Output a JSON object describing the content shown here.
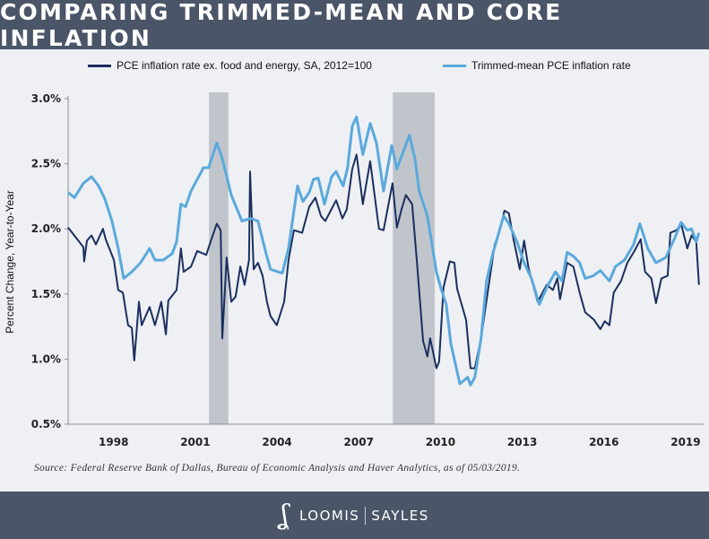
{
  "header": {
    "title": "COMPARING TRIMMED-MEAN AND CORE INFLATION"
  },
  "footer": {
    "source": "Source: Federal Reserve Bank of Dallas, Bureau of Economic Analysis and Haver Analytics, as of 05/03/2019.",
    "brand_left": "LOOMIS",
    "brand_right": "SAYLES",
    "logo_text": "LS"
  },
  "chart_data": {
    "type": "line",
    "title": "COMPARING TRIMMED-MEAN AND CORE INFLATION",
    "xlabel": "",
    "ylabel": "Percent Change, Year-to-Year",
    "xlim": [
      1996.0,
      2019.33
    ],
    "ylim": [
      0.5,
      3.0
    ],
    "x_ticks": [
      1998,
      2001,
      2004,
      2007,
      2010,
      2013,
      2016,
      2019
    ],
    "x_tick_labels": [
      "1998",
      "2001",
      "2004",
      "2007",
      "2010",
      "2013",
      "2016",
      "2019"
    ],
    "y_ticks": [
      0.5,
      1.0,
      1.5,
      2.0,
      2.5,
      3.0
    ],
    "y_tick_labels": [
      "0.5%",
      "1.0%",
      "1.5%",
      "2.0%",
      "2.5%",
      "3.0%"
    ],
    "grid": false,
    "legend_position": "top",
    "recessions": [
      [
        2001.17,
        2001.88
      ],
      [
        2007.92,
        2009.46
      ]
    ],
    "recession_color": "#c0c5cc",
    "series": [
      {
        "name": "PCE inflation rate ex. food and energy, SA, 2012=100",
        "color": "#1b2f5e",
        "points": [
          [
            1996.0,
            2.01
          ],
          [
            1996.56,
            1.86
          ],
          [
            1996.59,
            1.75
          ],
          [
            1996.69,
            1.91
          ],
          [
            1996.86,
            1.95
          ],
          [
            1997.02,
            1.88
          ],
          [
            1997.28,
            2.0
          ],
          [
            1997.38,
            1.92
          ],
          [
            1997.68,
            1.76
          ],
          [
            1997.84,
            1.53
          ],
          [
            1998.01,
            1.51
          ],
          [
            1998.2,
            1.26
          ],
          [
            1998.34,
            1.24
          ],
          [
            1998.43,
            0.99
          ],
          [
            1998.6,
            1.44
          ],
          [
            1998.7,
            1.26
          ],
          [
            1998.99,
            1.4
          ],
          [
            1999.19,
            1.26
          ],
          [
            1999.42,
            1.44
          ],
          [
            1999.59,
            1.19
          ],
          [
            1999.68,
            1.45
          ],
          [
            1999.98,
            1.53
          ],
          [
            2000.14,
            1.85
          ],
          [
            2000.24,
            1.67
          ],
          [
            2000.51,
            1.71
          ],
          [
            2000.74,
            1.83
          ],
          [
            2001.07,
            1.8
          ],
          [
            2001.23,
            1.9
          ],
          [
            2001.46,
            2.04
          ],
          [
            2001.6,
            1.99
          ],
          [
            2001.66,
            1.16
          ],
          [
            2001.82,
            1.78
          ],
          [
            2001.99,
            1.44
          ],
          [
            2002.15,
            1.48
          ],
          [
            2002.32,
            1.71
          ],
          [
            2002.48,
            1.57
          ],
          [
            2002.64,
            1.76
          ],
          [
            2002.68,
            2.44
          ],
          [
            2002.81,
            1.69
          ],
          [
            2002.97,
            1.74
          ],
          [
            2003.14,
            1.64
          ],
          [
            2003.3,
            1.44
          ],
          [
            2003.43,
            1.33
          ],
          [
            2003.66,
            1.26
          ],
          [
            2003.93,
            1.44
          ],
          [
            2004.09,
            1.76
          ],
          [
            2004.29,
            1.99
          ],
          [
            2004.59,
            1.97
          ],
          [
            2004.85,
            2.17
          ],
          [
            2005.08,
            2.24
          ],
          [
            2005.28,
            2.1
          ],
          [
            2005.44,
            2.06
          ],
          [
            2005.84,
            2.22
          ],
          [
            2006.07,
            2.08
          ],
          [
            2006.23,
            2.15
          ],
          [
            2006.43,
            2.46
          ],
          [
            2006.59,
            2.57
          ],
          [
            2006.82,
            2.19
          ],
          [
            2007.09,
            2.52
          ],
          [
            2007.41,
            2.0
          ],
          [
            2007.58,
            1.99
          ],
          [
            2007.91,
            2.35
          ],
          [
            2008.07,
            2.01
          ],
          [
            2008.24,
            2.15
          ],
          [
            2008.4,
            2.26
          ],
          [
            2008.63,
            2.19
          ],
          [
            2008.8,
            1.76
          ],
          [
            2009.03,
            1.14
          ],
          [
            2009.19,
            1.02
          ],
          [
            2009.29,
            1.16
          ],
          [
            2009.52,
            0.93
          ],
          [
            2009.62,
            0.98
          ],
          [
            2009.78,
            1.55
          ],
          [
            2010.01,
            1.75
          ],
          [
            2010.18,
            1.74
          ],
          [
            2010.28,
            1.54
          ],
          [
            2010.61,
            1.3
          ],
          [
            2010.77,
            0.93
          ],
          [
            2010.93,
            0.93
          ],
          [
            2011.16,
            1.16
          ],
          [
            2011.43,
            1.55
          ],
          [
            2011.66,
            1.88
          ],
          [
            2011.82,
            1.97
          ],
          [
            2012.02,
            2.14
          ],
          [
            2012.18,
            2.12
          ],
          [
            2012.35,
            1.92
          ],
          [
            2012.58,
            1.69
          ],
          [
            2012.74,
            1.91
          ],
          [
            2012.91,
            1.69
          ],
          [
            2013.24,
            1.44
          ],
          [
            2013.57,
            1.57
          ],
          [
            2013.8,
            1.53
          ],
          [
            2013.96,
            1.62
          ],
          [
            2014.06,
            1.46
          ],
          [
            2014.32,
            1.74
          ],
          [
            2014.55,
            1.71
          ],
          [
            2014.78,
            1.51
          ],
          [
            2014.98,
            1.36
          ],
          [
            2015.31,
            1.3
          ],
          [
            2015.54,
            1.23
          ],
          [
            2015.7,
            1.29
          ],
          [
            2015.87,
            1.26
          ],
          [
            2016.03,
            1.51
          ],
          [
            2016.3,
            1.6
          ],
          [
            2016.53,
            1.74
          ],
          [
            2016.79,
            1.83
          ],
          [
            2017.02,
            1.92
          ],
          [
            2017.18,
            1.67
          ],
          [
            2017.41,
            1.62
          ],
          [
            2017.58,
            1.43
          ],
          [
            2017.78,
            1.62
          ],
          [
            2018.01,
            1.64
          ],
          [
            2018.11,
            1.97
          ],
          [
            2018.34,
            1.99
          ],
          [
            2018.5,
            2.04
          ],
          [
            2018.73,
            1.85
          ],
          [
            2018.89,
            1.95
          ],
          [
            2019.06,
            1.9
          ],
          [
            2019.16,
            1.57
          ]
        ]
      },
      {
        "name": "Trimmed-mean PCE inflation rate",
        "color": "#5aa9dc",
        "points": [
          [
            1996.0,
            2.28
          ],
          [
            1996.23,
            2.24
          ],
          [
            1996.56,
            2.35
          ],
          [
            1996.86,
            2.4
          ],
          [
            1997.12,
            2.33
          ],
          [
            1997.35,
            2.23
          ],
          [
            1997.61,
            2.06
          ],
          [
            1997.84,
            1.85
          ],
          [
            1998.04,
            1.62
          ],
          [
            1998.34,
            1.67
          ],
          [
            1998.66,
            1.74
          ],
          [
            1998.99,
            1.85
          ],
          [
            1999.19,
            1.76
          ],
          [
            1999.49,
            1.76
          ],
          [
            1999.82,
            1.81
          ],
          [
            1999.98,
            1.9
          ],
          [
            2000.14,
            2.19
          ],
          [
            2000.31,
            2.17
          ],
          [
            2000.51,
            2.29
          ],
          [
            2000.97,
            2.47
          ],
          [
            2001.16,
            2.47
          ],
          [
            2001.46,
            2.66
          ],
          [
            2001.66,
            2.54
          ],
          [
            2001.99,
            2.26
          ],
          [
            2002.38,
            2.06
          ],
          [
            2002.71,
            2.08
          ],
          [
            2002.97,
            2.06
          ],
          [
            2003.27,
            1.81
          ],
          [
            2003.43,
            1.69
          ],
          [
            2003.7,
            1.67
          ],
          [
            2003.86,
            1.66
          ],
          [
            2004.09,
            1.85
          ],
          [
            2004.42,
            2.33
          ],
          [
            2004.62,
            2.21
          ],
          [
            2004.85,
            2.28
          ],
          [
            2005.01,
            2.38
          ],
          [
            2005.18,
            2.39
          ],
          [
            2005.41,
            2.19
          ],
          [
            2005.67,
            2.4
          ],
          [
            2005.84,
            2.44
          ],
          [
            2006.1,
            2.33
          ],
          [
            2006.26,
            2.47
          ],
          [
            2006.43,
            2.79
          ],
          [
            2006.59,
            2.86
          ],
          [
            2006.82,
            2.57
          ],
          [
            2007.09,
            2.81
          ],
          [
            2007.32,
            2.66
          ],
          [
            2007.58,
            2.29
          ],
          [
            2007.88,
            2.64
          ],
          [
            2008.07,
            2.46
          ],
          [
            2008.53,
            2.72
          ],
          [
            2008.73,
            2.54
          ],
          [
            2008.89,
            2.29
          ],
          [
            2009.19,
            2.1
          ],
          [
            2009.52,
            1.67
          ],
          [
            2009.68,
            1.55
          ],
          [
            2009.88,
            1.42
          ],
          [
            2010.05,
            1.12
          ],
          [
            2010.38,
            0.81
          ],
          [
            2010.67,
            0.86
          ],
          [
            2010.77,
            0.8
          ],
          [
            2010.93,
            0.86
          ],
          [
            2011.16,
            1.16
          ],
          [
            2011.36,
            1.6
          ],
          [
            2011.59,
            1.81
          ],
          [
            2011.99,
            2.1
          ],
          [
            2012.18,
            2.04
          ],
          [
            2012.48,
            1.9
          ],
          [
            2012.74,
            1.74
          ],
          [
            2013.01,
            1.62
          ],
          [
            2013.3,
            1.42
          ],
          [
            2013.57,
            1.55
          ],
          [
            2013.89,
            1.67
          ],
          [
            2014.13,
            1.6
          ],
          [
            2014.32,
            1.82
          ],
          [
            2014.55,
            1.79
          ],
          [
            2014.78,
            1.74
          ],
          [
            2014.98,
            1.62
          ],
          [
            2015.28,
            1.64
          ],
          [
            2015.54,
            1.68
          ],
          [
            2015.87,
            1.6
          ],
          [
            2016.09,
            1.71
          ],
          [
            2016.42,
            1.76
          ],
          [
            2016.76,
            1.88
          ],
          [
            2016.99,
            2.04
          ],
          [
            2017.28,
            1.85
          ],
          [
            2017.58,
            1.74
          ],
          [
            2017.94,
            1.78
          ],
          [
            2018.27,
            1.93
          ],
          [
            2018.5,
            2.05
          ],
          [
            2018.73,
            1.99
          ],
          [
            2018.89,
            2.0
          ],
          [
            2019.06,
            1.9
          ],
          [
            2019.16,
            1.97
          ]
        ]
      }
    ]
  }
}
